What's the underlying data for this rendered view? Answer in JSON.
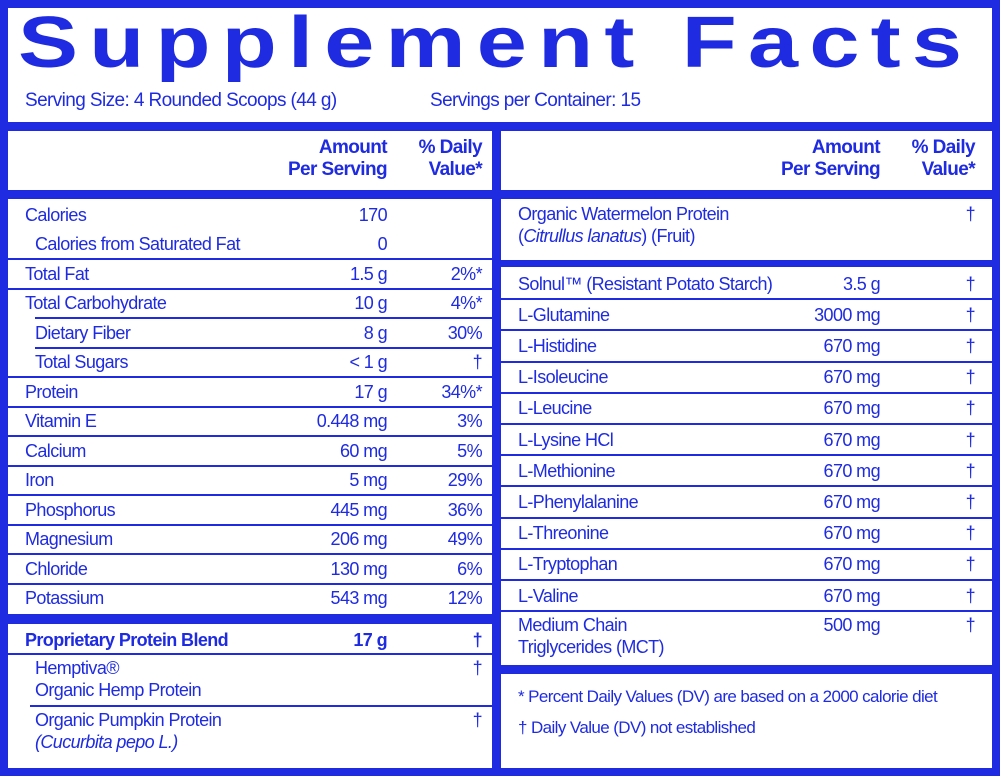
{
  "title": "Supplement Facts",
  "serving_size": "Serving Size: 4 Rounded Scoops (44 g)",
  "servings_per_container": "Servings per Container: 15",
  "left": {
    "header": {
      "amount": [
        "Amount",
        "Per Serving"
      ],
      "daily_value": [
        "% Daily",
        "Value*"
      ]
    },
    "rows": [
      {
        "name": [
          "Calories"
        ],
        "amount": "170"
      },
      {
        "name": [
          "Calories from Saturated Fat"
        ],
        "amount": "0",
        "indent": true
      },
      {
        "name": [
          "Total Fat"
        ],
        "amount": "1.5 g",
        "daily_value": "2%*"
      },
      {
        "name": [
          "Total Carbohydrate"
        ],
        "amount": "10 g",
        "daily_value": "4%*"
      },
      {
        "name": [
          "Dietary Fiber"
        ],
        "amount": "8 g",
        "daily_value": "30%",
        "indent": true
      },
      {
        "name": [
          "Total Sugars"
        ],
        "amount": "< 1 g",
        "daily_value": "†",
        "indent": true
      },
      {
        "name": [
          "Protein"
        ],
        "amount": "17 g",
        "daily_value": "34%*"
      },
      {
        "name": [
          "Vitamin E"
        ],
        "amount": "0.448 mg",
        "daily_value": "3%"
      },
      {
        "name": [
          "Calcium"
        ],
        "amount": "60 mg",
        "daily_value": "5%"
      },
      {
        "name": [
          "Iron"
        ],
        "amount": "5 mg",
        "daily_value": "29%"
      },
      {
        "name": [
          "Phosphorus"
        ],
        "amount": "445 mg",
        "daily_value": "36%"
      },
      {
        "name": [
          "Magnesium"
        ],
        "amount": "206 mg",
        "daily_value": "49%"
      },
      {
        "name": [
          "Chloride"
        ],
        "amount": "130 mg",
        "daily_value": "6%"
      },
      {
        "name": [
          "Potassium"
        ],
        "amount": "543 mg",
        "daily_value": "12%"
      }
    ],
    "blend": [
      {
        "name": [
          "Proprietary Protein Blend"
        ],
        "amount": "17 g",
        "daily_value": "†",
        "bold": true
      },
      {
        "name": [
          "Hemptiva®",
          "Organic Hemp Protein"
        ],
        "daily_value": "†",
        "indent": true
      },
      {
        "name": [
          "Organic Pumpkin Protein",
          [
            {
              "text": "(Cucurbita pepo L.)",
              "italic": true
            }
          ]
        ],
        "daily_value": "†",
        "indent": true
      }
    ]
  },
  "right": {
    "header": {
      "amount": [
        "Amount",
        "Per Serving"
      ],
      "daily_value": [
        "% Daily",
        "Value*"
      ]
    },
    "top": {
      "name": [
        "Organic Watermelon Protein",
        [
          {
            "text": "("
          },
          {
            "text": "Citrullus lanatus",
            "italic": true
          },
          {
            "text": ") (Fruit)"
          }
        ]
      ],
      "daily_value": "†"
    },
    "rows": [
      {
        "name": [
          "Solnul™ (Resistant Potato Starch)"
        ],
        "amount": "3.5 g",
        "daily_value": "†"
      },
      {
        "name": [
          "L-Glutamine"
        ],
        "amount": "3000 mg",
        "daily_value": "†"
      },
      {
        "name": [
          "L-Histidine"
        ],
        "amount": "670 mg",
        "daily_value": "†"
      },
      {
        "name": [
          "L-Isoleucine"
        ],
        "amount": "670 mg",
        "daily_value": "†"
      },
      {
        "name": [
          "L-Leucine"
        ],
        "amount": "670 mg",
        "daily_value": "†"
      },
      {
        "name": [
          "L-Lysine HCl"
        ],
        "amount": "670 mg",
        "daily_value": "†"
      },
      {
        "name": [
          "L-Methionine"
        ],
        "amount": "670 mg",
        "daily_value": "†"
      },
      {
        "name": [
          "L-Phenylalanine"
        ],
        "amount": "670 mg",
        "daily_value": "†"
      },
      {
        "name": [
          "L-Threonine"
        ],
        "amount": "670 mg",
        "daily_value": "†"
      },
      {
        "name": [
          "L-Tryptophan"
        ],
        "amount": "670 mg",
        "daily_value": "†"
      },
      {
        "name": [
          "L-Valine"
        ],
        "amount": "670 mg",
        "daily_value": "†"
      },
      {
        "name": [
          "Medium Chain",
          "Triglycerides (MCT)"
        ],
        "amount": "500 mg",
        "daily_value": "†"
      }
    ],
    "footnotes": [
      "* Percent Daily Values (DV) are based on a 2000 calorie diet",
      "† Daily Value (DV) not established"
    ]
  }
}
